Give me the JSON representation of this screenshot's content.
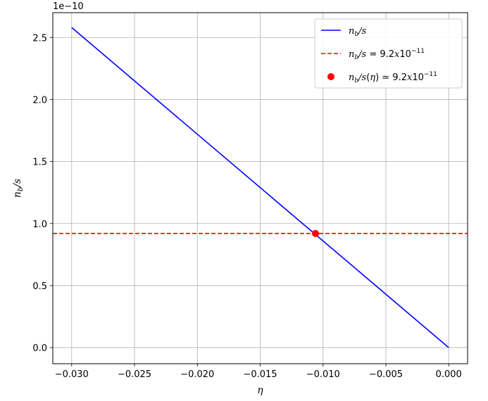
{
  "chart_data": {
    "type": "line",
    "title": "",
    "xlabel": "η",
    "ylabel_main": "n",
    "ylabel_sub": "b",
    "ylabel_rest": "/s",
    "offset_label": "1e−10",
    "xlim": [
      -0.0315,
      0.0015
    ],
    "ylim": [
      -0.13,
      2.7
    ],
    "xticks": [
      -0.03,
      -0.025,
      -0.02,
      -0.015,
      -0.01,
      -0.005,
      0.0
    ],
    "xtick_labels": [
      "−0.030",
      "−0.025",
      "−0.020",
      "−0.015",
      "−0.010",
      "−0.005",
      "0.000"
    ],
    "yticks": [
      0.0,
      0.5,
      1.0,
      1.5,
      2.0,
      2.5
    ],
    "ytick_labels": [
      "0.0",
      "0.5",
      "1.0",
      "1.5",
      "2.0",
      "2.5"
    ],
    "grid": true,
    "legend_position": "top-right",
    "colors": {
      "line": "#0000ff",
      "hline": "#ff0000",
      "point": "#ff0000"
    },
    "series": [
      {
        "kind": "line",
        "x": [
          -0.03,
          0.0
        ],
        "y": [
          2.58,
          0.0
        ]
      },
      {
        "kind": "hline",
        "y": 0.92
      },
      {
        "kind": "point",
        "x": -0.0106,
        "y": 0.92
      }
    ],
    "legend": [
      {
        "kind": "line",
        "parts": [
          [
            "it",
            "n"
          ],
          [
            "sub",
            "b"
          ],
          [
            "it",
            "/s"
          ]
        ]
      },
      {
        "kind": "hline",
        "parts": [
          [
            "it",
            "n"
          ],
          [
            "sub",
            "b"
          ],
          [
            "it",
            "/s"
          ],
          [
            "n",
            " = 9.2"
          ],
          [
            "it",
            "x"
          ],
          [
            "n",
            "10"
          ],
          [
            "sup",
            "−11"
          ]
        ]
      },
      {
        "kind": "point",
        "parts": [
          [
            "it",
            "n"
          ],
          [
            "sub",
            "b"
          ],
          [
            "it",
            "/s"
          ],
          [
            "n",
            "("
          ],
          [
            "it",
            "η"
          ],
          [
            "n",
            ") ≃ 9.2"
          ],
          [
            "it",
            "x"
          ],
          [
            "n",
            "10"
          ],
          [
            "sup",
            "−11"
          ]
        ]
      }
    ]
  }
}
